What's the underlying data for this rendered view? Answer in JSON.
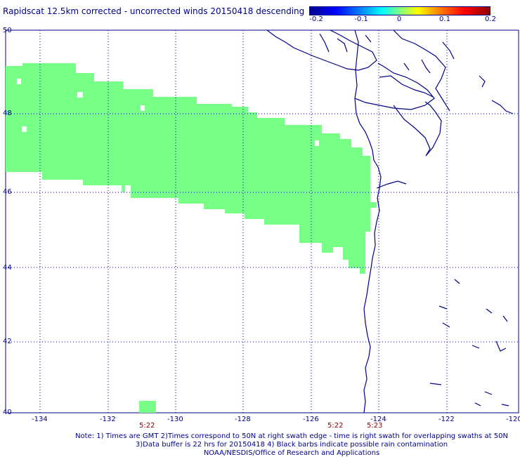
{
  "title": "Rapidscat 12.5km corrected - uncorrected winds 20150418 descending",
  "colorbar": {
    "labels": [
      "-0.2",
      "-0.1",
      "0",
      "0.1",
      "0.2"
    ],
    "colors": [
      "#00008b",
      "#0000ff",
      "#00ffff",
      "#80ff80",
      "#ffff00",
      "#ff0000",
      "#8b0000"
    ]
  },
  "map": {
    "lon_range": [
      -135,
      -120
    ],
    "lat_range": [
      40,
      50
    ],
    "lon_ticks": [
      "-134",
      "-132",
      "-130",
      "-128",
      "-126",
      "-124",
      "-122",
      "-120"
    ],
    "lat_ticks": [
      "50",
      "48",
      "46",
      "44",
      "42",
      "40"
    ],
    "swath_color": "#77ff88",
    "swath_value": "0",
    "coastline_color": "#00008b",
    "grid": "dotted"
  },
  "time_labels": [
    "5:22",
    "5:22",
    "5:23"
  ],
  "notes": [
    "Note: 1) Times are GMT 2)Times correspond to 50N at right swath edge - time is right swath for overlapping swaths at 50N",
    "3)Data buffer is 22 hrs for 20150418 4) Black barbs indicate possible rain contamination",
    "NOAA/NESDIS/Office of Research and Applications"
  ]
}
